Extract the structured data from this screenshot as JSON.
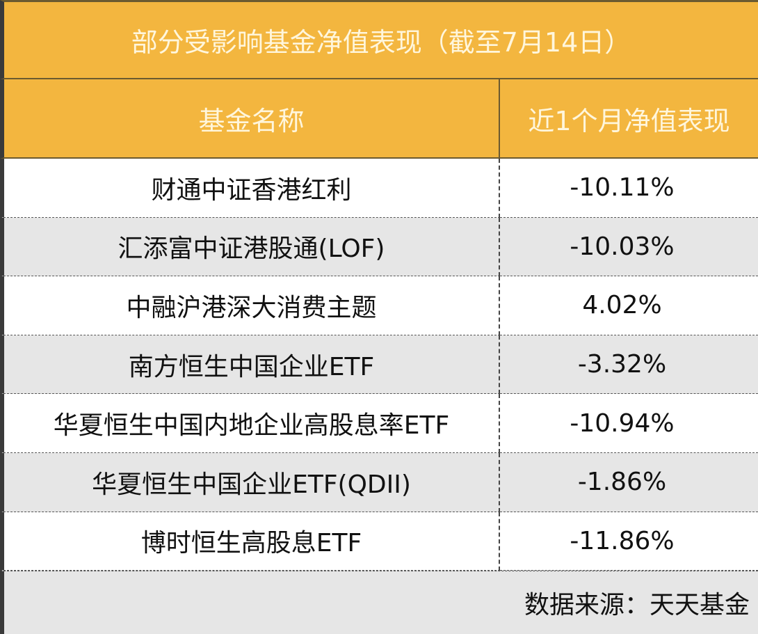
{
  "title": "部分受影响基金净值表现（截至7月14日）",
  "table": {
    "headers": [
      "基金名称",
      "近1个月净值表现"
    ],
    "rows": [
      [
        "财通中证香港红利",
        "-10.11%"
      ],
      [
        "汇添富中证港股通(LOF)",
        "-10.03%"
      ],
      [
        "中融沪港深大消费主题",
        "4.02%"
      ],
      [
        "南方恒生中国企业ETF",
        "-3.32%"
      ],
      [
        "华夏恒生中国内地企业高股息率ETF",
        "-10.94%"
      ],
      [
        "华夏恒生中国企业ETF(QDII)",
        "-1.86%"
      ],
      [
        "博时恒生高股息ETF",
        "-11.86%"
      ]
    ]
  },
  "source": "数据来源：天天基金"
}
